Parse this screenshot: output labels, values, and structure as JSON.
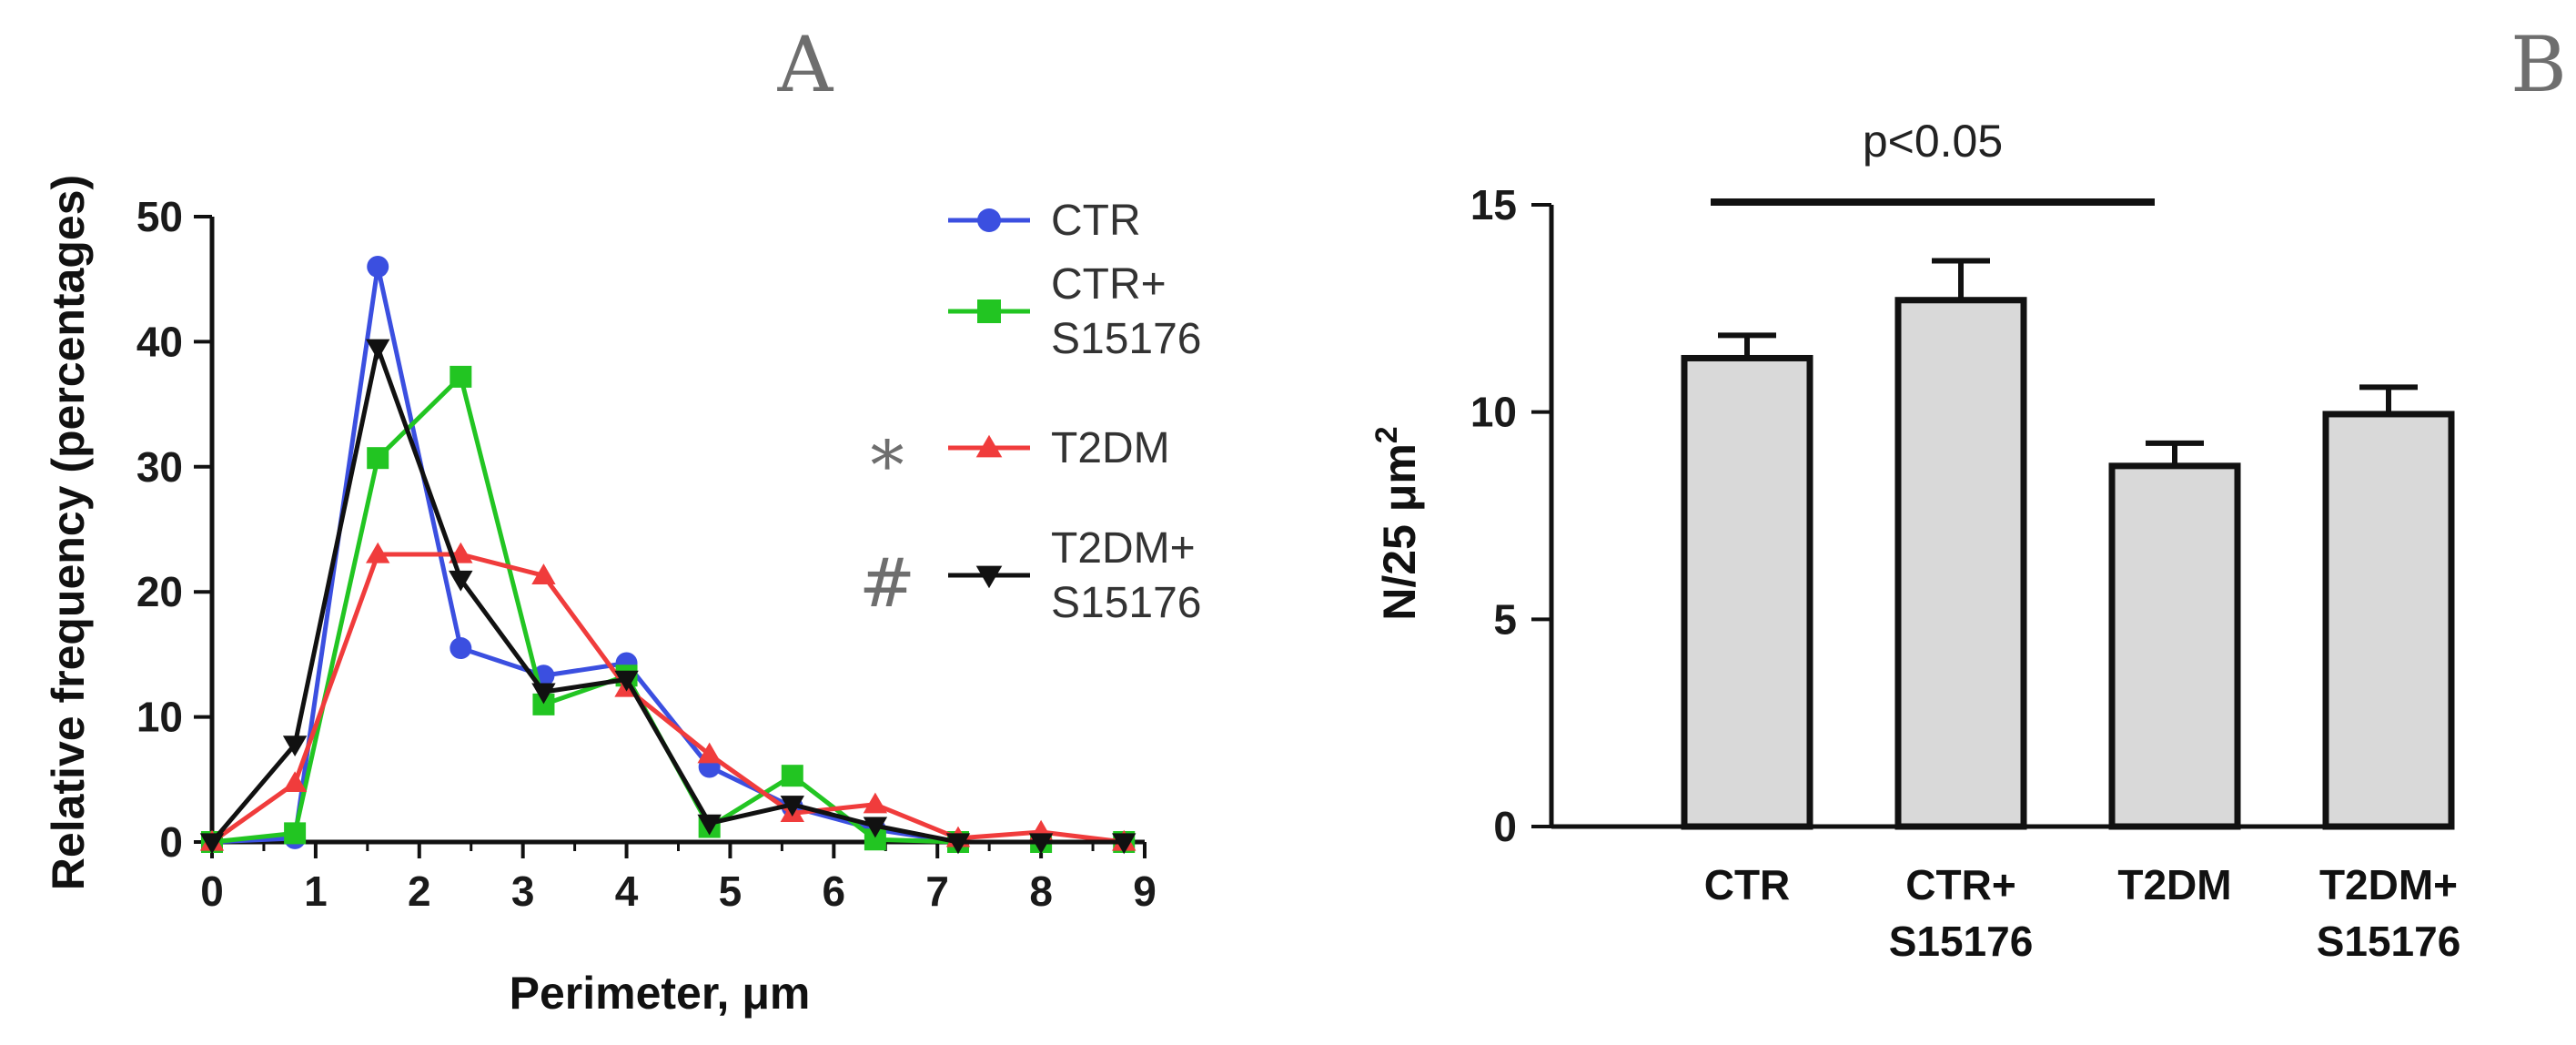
{
  "panels": {
    "a_label": "A",
    "b_label": "B"
  },
  "chart_data": [
    {
      "id": "A",
      "type": "line",
      "xlabel": "Perimeter, μm",
      "ylabel": "Relative frequency (percentages)",
      "xlim": [
        0,
        9
      ],
      "ylim": [
        0,
        50
      ],
      "xticks": [
        0,
        1,
        2,
        3,
        4,
        5,
        6,
        7,
        8,
        9
      ],
      "yticks": [
        0,
        10,
        20,
        30,
        40,
        50
      ],
      "grid": false,
      "legend_position": "right",
      "series": [
        {
          "name": "CTR",
          "color": "#3b4fe0",
          "marker": "circle",
          "annotation": "",
          "points": [
            [
              0,
              0
            ],
            [
              0.8,
              0.3
            ],
            [
              1.6,
              46
            ],
            [
              2.4,
              15.5
            ],
            [
              3.2,
              13.3
            ],
            [
              4,
              14.3
            ],
            [
              4.8,
              6
            ],
            [
              5.6,
              2.8
            ],
            [
              6.4,
              1
            ],
            [
              7.2,
              0
            ],
            [
              8,
              0
            ],
            [
              8.8,
              0
            ]
          ]
        },
        {
          "name": "CTR+\nS15176",
          "color": "#22c522",
          "marker": "square",
          "annotation": "",
          "points": [
            [
              0,
              0
            ],
            [
              0.8,
              0.7
            ],
            [
              1.6,
              30.7
            ],
            [
              2.4,
              37.2
            ],
            [
              3.2,
              11
            ],
            [
              4,
              13.3
            ],
            [
              4.8,
              1.2
            ],
            [
              5.6,
              5.3
            ],
            [
              6.4,
              0.2
            ],
            [
              7.2,
              0
            ],
            [
              8,
              0
            ],
            [
              8.8,
              0
            ]
          ]
        },
        {
          "name": "T2DM",
          "color": "#f03c3c",
          "marker": "triangle-up",
          "annotation": "∗",
          "points": [
            [
              0,
              0
            ],
            [
              0.8,
              4.7
            ],
            [
              1.6,
              23
            ],
            [
              2.4,
              23
            ],
            [
              3.2,
              21.3
            ],
            [
              4,
              12.3
            ],
            [
              4.8,
              7
            ],
            [
              5.6,
              2.3
            ],
            [
              6.4,
              3
            ],
            [
              7.2,
              0.3
            ],
            [
              8,
              0.8
            ],
            [
              8.8,
              0
            ]
          ]
        },
        {
          "name": "T2DM+\nS15176",
          "color": "#111111",
          "marker": "triangle-down",
          "annotation": "#",
          "points": [
            [
              0,
              0
            ],
            [
              0.8,
              7.8
            ],
            [
              1.6,
              39.5
            ],
            [
              2.4,
              21
            ],
            [
              3.2,
              12
            ],
            [
              4,
              13
            ],
            [
              4.8,
              1.5
            ],
            [
              5.6,
              3
            ],
            [
              6.4,
              1.3
            ],
            [
              7.2,
              0
            ],
            [
              8,
              0
            ],
            [
              8.8,
              0
            ]
          ]
        }
      ]
    },
    {
      "id": "B",
      "type": "bar",
      "ylabel": "N/25 μm",
      "ylabel_sup": "2",
      "ylim": [
        0,
        15
      ],
      "yticks": [
        0,
        5,
        10,
        15
      ],
      "grid": false,
      "categories": [
        "CTR\n",
        "CTR+\nS15176",
        "T2DM\n",
        "T2DM+\nS15176"
      ],
      "values": [
        11.3,
        12.7,
        8.7,
        9.95
      ],
      "errors": [
        0.55,
        0.95,
        0.55,
        0.65
      ],
      "bar_color": "#d9d9d9",
      "significance": {
        "text": "p<0.05",
        "from": 0,
        "to": 2
      }
    }
  ]
}
